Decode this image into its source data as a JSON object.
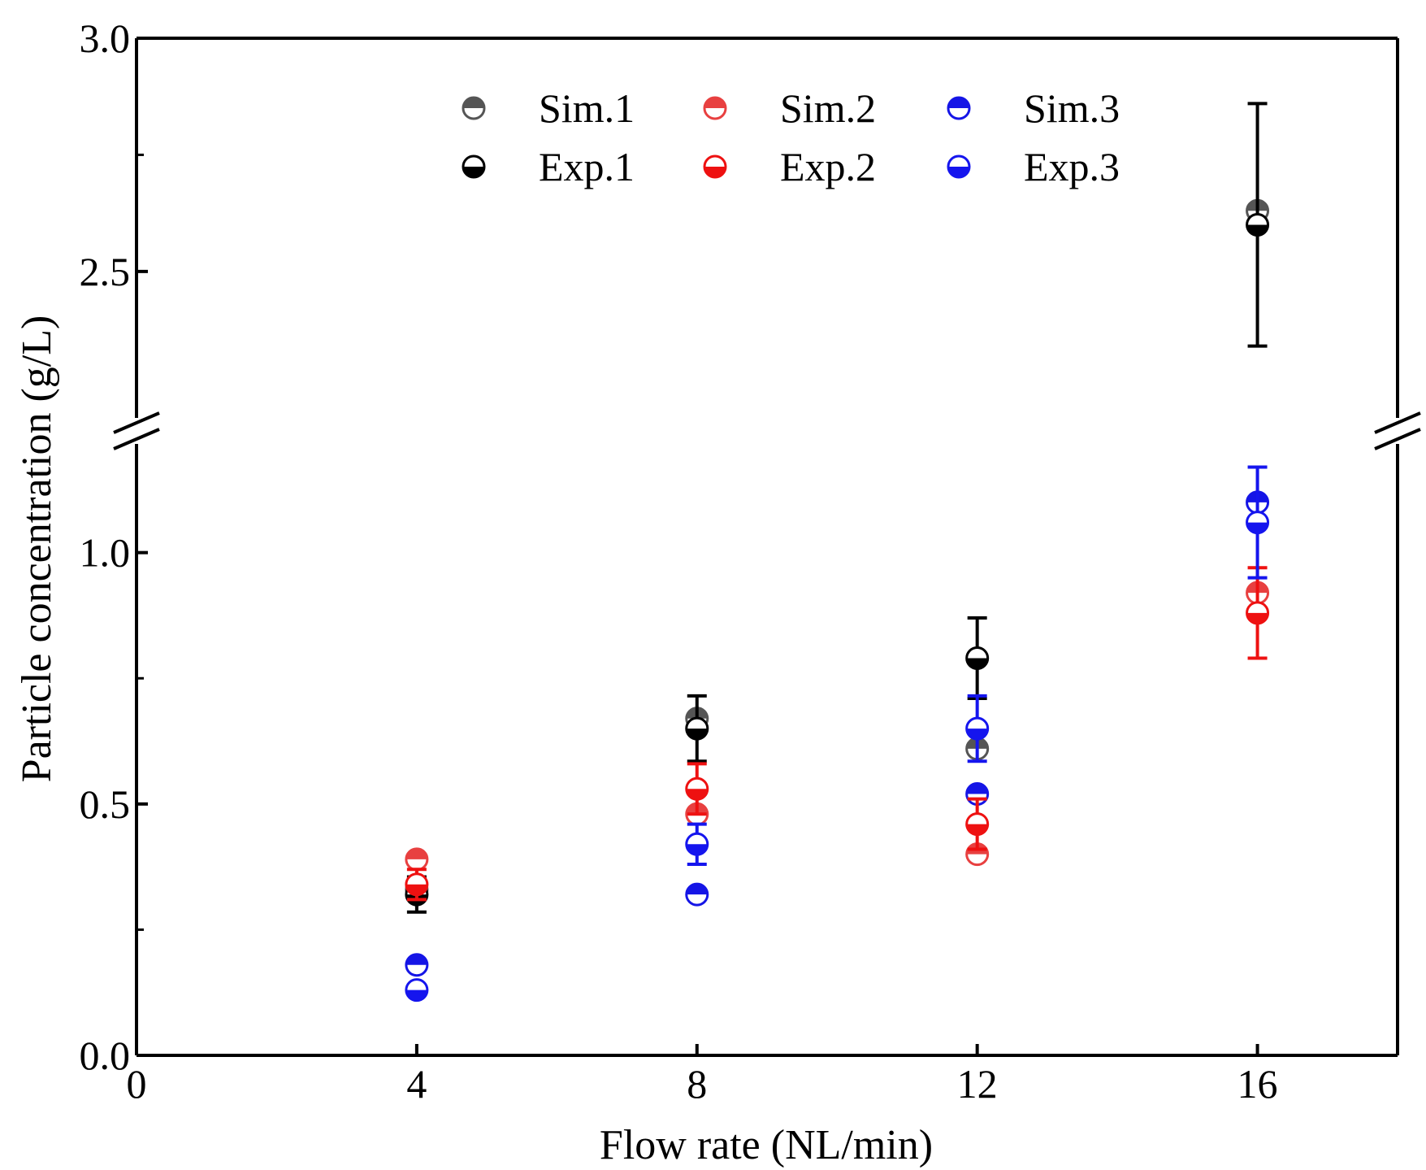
{
  "chart_data": {
    "type": "scatter",
    "title": "",
    "xlabel": "Flow rate (NL/min)",
    "ylabel": "Particle concentration (g/L)",
    "xlim": [
      0,
      18
    ],
    "x_ticks": [
      "0",
      "4",
      "8",
      "12",
      "16"
    ],
    "y_ticks_lower": [
      "0.0",
      "0.5",
      "1.0"
    ],
    "y_ticks_upper": [
      "2.5",
      "3.0"
    ],
    "ylim_lower": [
      0,
      1.2
    ],
    "ylim_upper": [
      2.2,
      3.0
    ],
    "axis_break": true,
    "grid": false,
    "legend_position": "top",
    "series": [
      {
        "name": "Sim.1",
        "kind": "sim",
        "color": "#555555",
        "x": [
          4,
          8,
          12,
          16
        ],
        "y": [
          0.33,
          0.67,
          0.61,
          2.63
        ],
        "err": [
          null,
          null,
          null,
          null
        ]
      },
      {
        "name": "Sim.2",
        "kind": "sim",
        "color": "#e84040",
        "x": [
          4,
          8,
          12,
          16
        ],
        "y": [
          0.39,
          0.48,
          0.4,
          0.92
        ],
        "err": [
          null,
          null,
          null,
          null
        ]
      },
      {
        "name": "Sim.3",
        "kind": "sim",
        "color": "#1515e6",
        "x": [
          4,
          8,
          12,
          16
        ],
        "y": [
          0.18,
          0.32,
          0.52,
          1.1
        ],
        "err": [
          null,
          null,
          null,
          null
        ]
      },
      {
        "name": "Exp.1",
        "kind": "exp",
        "color": "#000000",
        "x": [
          4,
          8,
          12,
          16
        ],
        "y": [
          0.32,
          0.65,
          0.79,
          2.6
        ],
        "err": [
          0.035,
          0.065,
          0.08,
          0.26
        ]
      },
      {
        "name": "Exp.2",
        "kind": "exp",
        "color": "#ee1111",
        "x": [
          4,
          8,
          12,
          16
        ],
        "y": [
          0.34,
          0.53,
          0.46,
          0.88
        ],
        "err": [
          0.03,
          0.05,
          0.05,
          0.09
        ]
      },
      {
        "name": "Exp.3",
        "kind": "exp",
        "color": "#1515ee",
        "x": [
          4,
          8,
          12,
          16
        ],
        "y": [
          0.13,
          0.42,
          0.65,
          1.06
        ],
        "err": [
          null,
          0.04,
          0.065,
          0.11
        ]
      }
    ]
  }
}
